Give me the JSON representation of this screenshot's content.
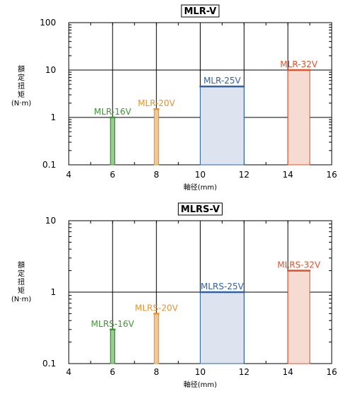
{
  "chart_data": [
    {
      "type": "bar",
      "title": "MLR-V",
      "xlabel": "軸径(mm)",
      "ylabel": "額定扭矩(N·m)",
      "ylabel_chars": [
        "額",
        "定",
        "扭",
        "矩",
        "(N·m)"
      ],
      "x_ticks": [
        "4",
        "6",
        "8",
        "10",
        "12",
        "14",
        "16"
      ],
      "y_ticks": [
        "100",
        "10",
        "1",
        "0.1"
      ],
      "y_scale": "log",
      "xlim": [
        4,
        16
      ],
      "ylim": [
        0.1,
        100
      ],
      "grid": true,
      "series": [
        {
          "name": "MLR-16V",
          "x_start": 5.9,
          "x_end": 6.1,
          "value": 1.0,
          "color": "#3a9a2e",
          "fill": "#ffffff",
          "hatched": true
        },
        {
          "name": "MLR-20V",
          "x_start": 7.9,
          "x_end": 8.1,
          "value": 1.5,
          "color": "#e8922a",
          "fill": "#ffffff",
          "hatched": true
        },
        {
          "name": "MLR-25V",
          "x_start": 10,
          "x_end": 12,
          "value": 4.5,
          "color": "#2e62a8",
          "fill": "#dde4f0",
          "hatched": false
        },
        {
          "name": "MLR-32V",
          "x_start": 14,
          "x_end": 15,
          "value": 10,
          "color": "#e2502a",
          "fill": "#f5dbd2",
          "hatched": false
        }
      ]
    },
    {
      "type": "bar",
      "title": "MLRS-V",
      "xlabel": "軸径(mm)",
      "ylabel": "額定扭矩(N·m)",
      "ylabel_chars": [
        "額",
        "定",
        "扭",
        "矩",
        "(N·m)"
      ],
      "x_ticks": [
        "4",
        "6",
        "8",
        "10",
        "12",
        "14",
        "16"
      ],
      "y_ticks": [
        "10",
        "1",
        "0.1"
      ],
      "y_scale": "log",
      "xlim": [
        4,
        16
      ],
      "ylim": [
        0.1,
        10
      ],
      "grid": true,
      "series": [
        {
          "name": "MLRS-16V",
          "x_start": 5.9,
          "x_end": 6.1,
          "value": 0.3,
          "color": "#3a9a2e",
          "fill": "#ffffff",
          "hatched": true
        },
        {
          "name": "MLRS-20V",
          "x_start": 7.9,
          "x_end": 8.1,
          "value": 0.5,
          "color": "#e8922a",
          "fill": "#ffffff",
          "hatched": true
        },
        {
          "name": "MLRS-25V",
          "x_start": 10,
          "x_end": 12,
          "value": 1.0,
          "color": "#2e62a8",
          "fill": "#dde4f0",
          "hatched": false
        },
        {
          "name": "MLRS-32V",
          "x_start": 14,
          "x_end": 15,
          "value": 2.0,
          "color": "#e2502a",
          "fill": "#f5dbd2",
          "hatched": false
        }
      ]
    }
  ]
}
